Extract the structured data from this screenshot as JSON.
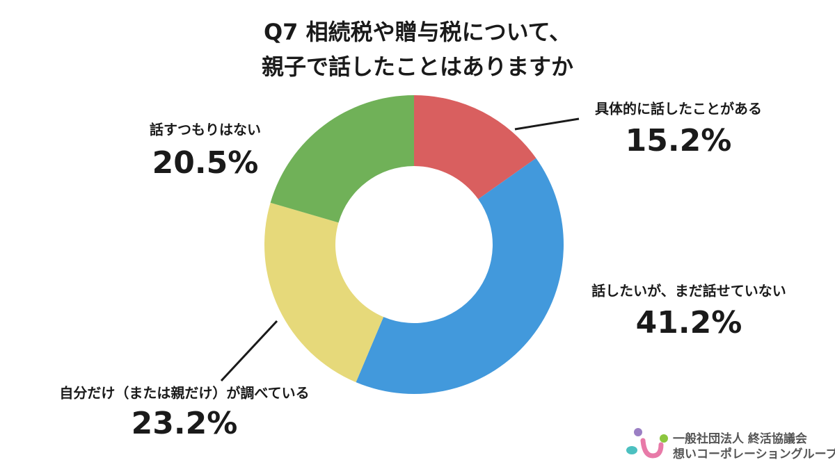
{
  "chart_data": {
    "type": "donut",
    "title": [
      "Q7 相続税や贈与税について、",
      "親子で話したことはありますか"
    ],
    "categories": [
      "具体的に話したことがある",
      "話したいが、まだ話せていない",
      "自分だけ（または親だけ）が調べている",
      "話すつもりはない"
    ],
    "values": [
      15.2,
      41.2,
      23.2,
      20.5
    ],
    "value_labels": [
      "15.2%",
      "41.2%",
      "23.2%",
      "20.5%"
    ],
    "colors": [
      "#d95f5f",
      "#4299dc",
      "#e6d97a",
      "#70b158"
    ]
  },
  "footer": {
    "org": "一般社団法人 終活協議会",
    "group": "想いコーポレーショングループ"
  }
}
